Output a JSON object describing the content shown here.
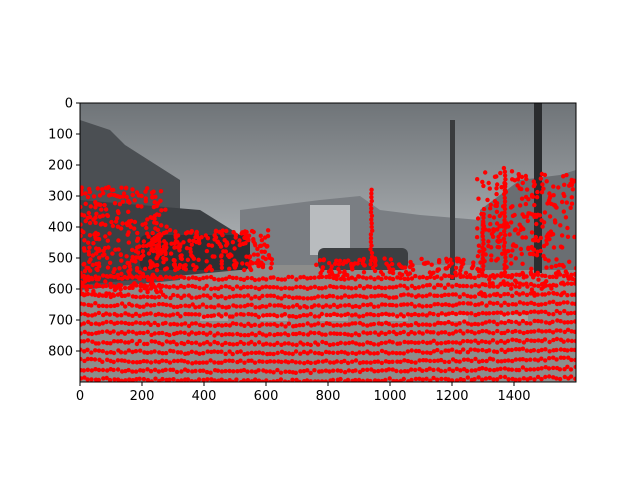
{
  "chart_data": {
    "type": "scatter",
    "title": "",
    "xlabel": "",
    "ylabel": "",
    "xlim": [
      0,
      1600
    ],
    "ylim": [
      900,
      0
    ],
    "y_inverted": true,
    "grid": false,
    "xticks": [
      0,
      200,
      400,
      600,
      800,
      1000,
      1200,
      1400
    ],
    "yticks": [
      0,
      100,
      200,
      300,
      400,
      500,
      600,
      700,
      800
    ],
    "background_image": "street-scene-photo",
    "colors": {
      "points": "#ff0000",
      "sky_top": "#6f7478",
      "sky_bottom": "#a9adb0",
      "road": "#8d8d8b",
      "buildings_left": "#4b4f53",
      "buildings_right": "#6a6e72"
    },
    "point_series": {
      "name": "",
      "road_rows_y": [
        560,
        590,
        620,
        650,
        680,
        710,
        740,
        770,
        800,
        830,
        860,
        890
      ],
      "road_x_range": [
        0,
        1600
      ],
      "road_step_x": 12,
      "left_building_cluster": {
        "x_range": [
          0,
          280
        ],
        "y_range": [
          270,
          620
        ]
      },
      "right_building_cluster": {
        "x_range": [
          1280,
          1600
        ],
        "y_range": [
          220,
          620
        ]
      },
      "car_cluster": {
        "x_range": [
          220,
          620
        ],
        "y_range": [
          410,
          540
        ]
      },
      "center_cluster": {
        "x_range": [
          760,
          1270
        ],
        "y_range": [
          500,
          560
        ]
      },
      "poles": [
        [
          940,
          280,
          520
        ],
        [
          1300,
          370,
          560
        ],
        [
          1370,
          210,
          560
        ]
      ]
    }
  }
}
